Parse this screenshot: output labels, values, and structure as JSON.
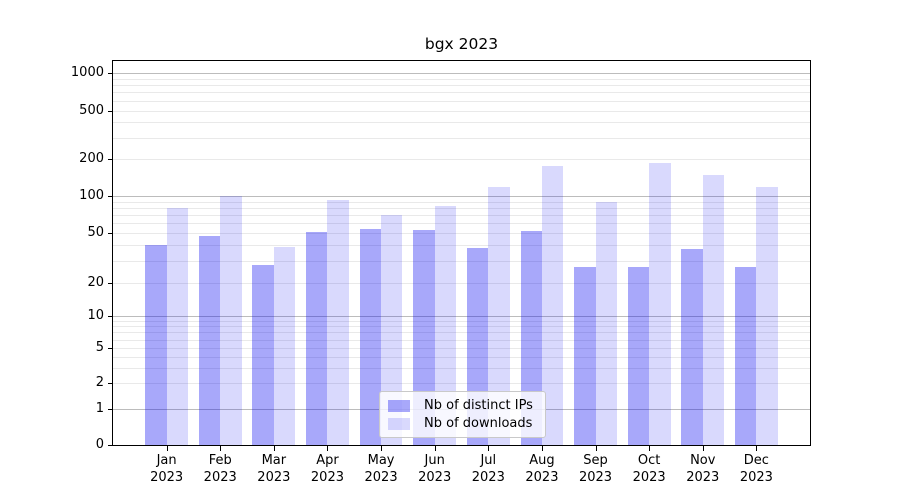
{
  "chart_data": {
    "type": "bar",
    "title": "bgx 2023",
    "categories": [
      "Jan 2023",
      "Feb 2023",
      "Mar 2023",
      "Apr 2023",
      "May 2023",
      "Jun 2023",
      "Jul 2023",
      "Aug 2023",
      "Sep 2023",
      "Oct 2023",
      "Nov 2023",
      "Dec 2023"
    ],
    "series": [
      {
        "name": "Nb of distinct IPs",
        "color": "rgba(0,0,240,0.34)",
        "values": [
          40,
          47,
          28,
          51,
          54,
          53,
          38,
          52,
          27,
          27,
          37,
          27
        ]
      },
      {
        "name": "Nb of downloads",
        "color": "rgba(0,0,240,0.15)",
        "values": [
          80,
          100,
          39,
          93,
          70,
          83,
          118,
          174,
          90,
          184,
          147,
          118
        ]
      }
    ],
    "ylabel": "",
    "xlabel": "",
    "y_scale": "log-like with 0 baseline",
    "y_ticks": [
      0,
      1,
      2,
      5,
      10,
      20,
      50,
      100,
      200,
      500,
      1000
    ],
    "y_major_gridlines": [
      1,
      10,
      100,
      1000
    ],
    "y_minor_gridlines": [
      2,
      3,
      4,
      5,
      6,
      7,
      8,
      9,
      20,
      30,
      40,
      50,
      60,
      70,
      80,
      90,
      200,
      300,
      400,
      500,
      600,
      700,
      800,
      900
    ],
    "ylim": [
      0,
      1000
    ],
    "grid": true,
    "legend_position": "lower center"
  },
  "colors": {
    "bar_distinct_ips": "rgba(0,0,240,0.34)",
    "bar_downloads": "rgba(0,0,240,0.15)",
    "grid_major": "#bcbcbc",
    "grid_minor": "#e9e9e9",
    "axis": "#000000"
  }
}
